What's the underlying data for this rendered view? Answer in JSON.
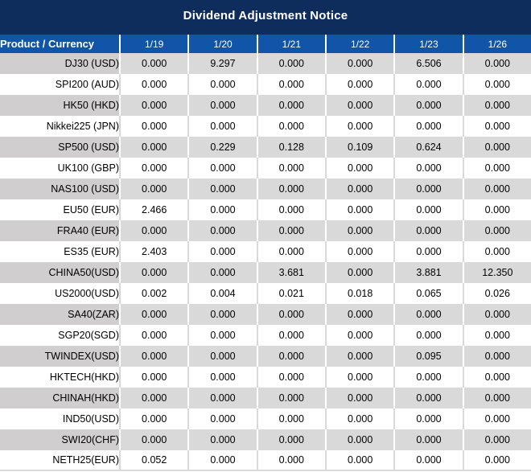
{
  "title": "Dividend Adjustment Notice",
  "colors": {
    "title_bar": "#0f2d5c",
    "header_blue": "#1155a8",
    "row_gray": "#d9d9d9",
    "product_col_gray": "#d0cece",
    "value_red": "#fe0000",
    "header_text": "#ffffff",
    "body_text": "#000000"
  },
  "header": {
    "product_column_label": "Product / Currency",
    "dates": [
      "1/19",
      "1/20",
      "1/21",
      "1/22",
      "1/23",
      "1/26"
    ]
  },
  "rows": [
    {
      "product": "DJ30 (USD)",
      "values": [
        "0.000",
        "9.297",
        "0.000",
        "0.000",
        "6.506",
        "0.000"
      ],
      "red": [
        false,
        true,
        false,
        false,
        true,
        false
      ]
    },
    {
      "product": "SPI200 (AUD)",
      "values": [
        "0.000",
        "0.000",
        "0.000",
        "0.000",
        "0.000",
        "0.000"
      ],
      "red": [
        false,
        false,
        false,
        false,
        false,
        false
      ]
    },
    {
      "product": "HK50 (HKD)",
      "values": [
        "0.000",
        "0.000",
        "0.000",
        "0.000",
        "0.000",
        "0.000"
      ],
      "red": [
        false,
        false,
        false,
        false,
        false,
        false
      ]
    },
    {
      "product": "Nikkei225 (JPN)",
      "values": [
        "0.000",
        "0.000",
        "0.000",
        "0.000",
        "0.000",
        "0.000"
      ],
      "red": [
        false,
        false,
        false,
        false,
        false,
        false
      ]
    },
    {
      "product": "SP500 (USD)",
      "values": [
        "0.000",
        "0.229",
        "0.128",
        "0.109",
        "0.624",
        "0.000"
      ],
      "red": [
        false,
        true,
        true,
        true,
        true,
        false
      ]
    },
    {
      "product": "UK100 (GBP)",
      "values": [
        "0.000",
        "0.000",
        "0.000",
        "0.000",
        "0.000",
        "0.000"
      ],
      "red": [
        false,
        false,
        false,
        false,
        false,
        false
      ]
    },
    {
      "product": "NAS100 (USD)",
      "values": [
        "0.000",
        "0.000",
        "0.000",
        "0.000",
        "0.000",
        "0.000"
      ],
      "red": [
        false,
        false,
        false,
        false,
        false,
        false
      ]
    },
    {
      "product": "EU50 (EUR)",
      "values": [
        "2.466",
        "0.000",
        "0.000",
        "0.000",
        "0.000",
        "0.000"
      ],
      "red": [
        true,
        false,
        false,
        false,
        false,
        false
      ]
    },
    {
      "product": "FRA40 (EUR)",
      "values": [
        "0.000",
        "0.000",
        "0.000",
        "0.000",
        "0.000",
        "0.000"
      ],
      "red": [
        false,
        false,
        false,
        false,
        false,
        false
      ]
    },
    {
      "product": "ES35 (EUR)",
      "values": [
        "2.403",
        "0.000",
        "0.000",
        "0.000",
        "0.000",
        "0.000"
      ],
      "red": [
        true,
        false,
        false,
        false,
        false,
        false
      ]
    },
    {
      "product": "CHINA50(USD)",
      "values": [
        "0.000",
        "0.000",
        "3.681",
        "0.000",
        "3.881",
        "12.350"
      ],
      "red": [
        false,
        false,
        true,
        false,
        true,
        true
      ]
    },
    {
      "product": "US2000(USD)",
      "values": [
        "0.002",
        "0.004",
        "0.021",
        "0.018",
        "0.065",
        "0.026"
      ],
      "red": [
        true,
        true,
        true,
        true,
        true,
        true
      ]
    },
    {
      "product": "SA40(ZAR)",
      "values": [
        "0.000",
        "0.000",
        "0.000",
        "0.000",
        "0.000",
        "0.000"
      ],
      "red": [
        false,
        false,
        false,
        false,
        false,
        false
      ]
    },
    {
      "product": "SGP20(SGD)",
      "values": [
        "0.000",
        "0.000",
        "0.000",
        "0.000",
        "0.000",
        "0.000"
      ],
      "red": [
        false,
        false,
        false,
        false,
        false,
        false
      ]
    },
    {
      "product": "TWINDEX(USD)",
      "values": [
        "0.000",
        "0.000",
        "0.000",
        "0.000",
        "0.095",
        "0.000"
      ],
      "red": [
        false,
        false,
        false,
        false,
        true,
        false
      ]
    },
    {
      "product": "HKTECH(HKD)",
      "values": [
        "0.000",
        "0.000",
        "0.000",
        "0.000",
        "0.000",
        "0.000"
      ],
      "red": [
        false,
        false,
        false,
        false,
        false,
        false
      ]
    },
    {
      "product": "CHINAH(HKD)",
      "values": [
        "0.000",
        "0.000",
        "0.000",
        "0.000",
        "0.000",
        "0.000"
      ],
      "red": [
        false,
        false,
        false,
        false,
        false,
        false
      ]
    },
    {
      "product": "IND50(USD)",
      "values": [
        "0.000",
        "0.000",
        "0.000",
        "0.000",
        "0.000",
        "0.000"
      ],
      "red": [
        false,
        false,
        false,
        false,
        false,
        false
      ]
    },
    {
      "product": "SWI20(CHF)",
      "values": [
        "0.000",
        "0.000",
        "0.000",
        "0.000",
        "0.000",
        "0.000"
      ],
      "red": [
        false,
        false,
        false,
        false,
        false,
        false
      ]
    },
    {
      "product": "NETH25(EUR)",
      "values": [
        "0.052",
        "0.000",
        "0.000",
        "0.000",
        "0.000",
        "0.000"
      ],
      "red": [
        true,
        false,
        false,
        false,
        false,
        false
      ]
    }
  ]
}
